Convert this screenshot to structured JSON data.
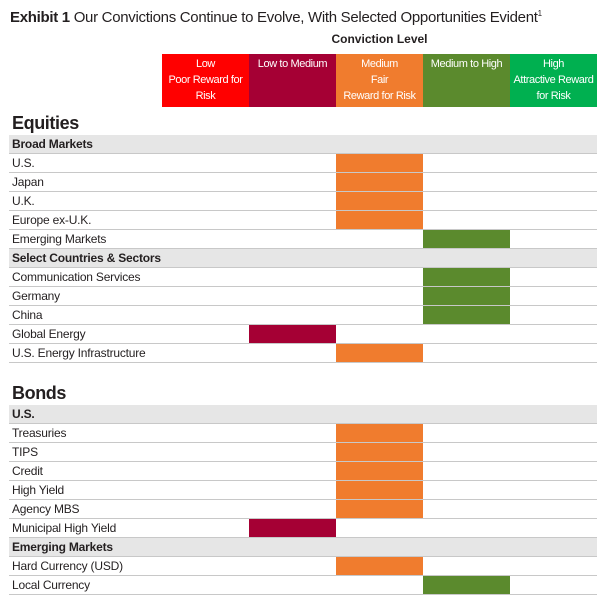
{
  "title": {
    "label": "Exhibit 1",
    "text": "Our Convictions Continue to Evolve, With Selected Opportunities Evident",
    "footnote": "1"
  },
  "conviction_header": "Conviction Level",
  "levels": [
    {
      "label": "Low\nPoor Reward for\nRisk",
      "color": "#ff0000"
    },
    {
      "label": "Low to Medium",
      "color": "#a50034"
    },
    {
      "label": "Medium\nFair\nReward for Risk",
      "color": "#f07c2e"
    },
    {
      "label": "Medium to High",
      "color": "#5b8a2d"
    },
    {
      "label": "High\nAttractive Reward\nfor Risk",
      "color": "#00b050"
    }
  ],
  "rows": [
    {
      "kind": "section",
      "label": "Equities"
    },
    {
      "kind": "subheader",
      "label": "Broad Markets"
    },
    {
      "kind": "item",
      "label": "U.S.",
      "level": 2
    },
    {
      "kind": "item",
      "label": "Japan",
      "level": 2
    },
    {
      "kind": "item",
      "label": "U.K.",
      "level": 2
    },
    {
      "kind": "item",
      "label": "Europe ex-U.K.",
      "level": 2
    },
    {
      "kind": "item",
      "label": "Emerging Markets",
      "level": 3
    },
    {
      "kind": "subheader",
      "label": "Select Countries & Sectors"
    },
    {
      "kind": "item",
      "label": "Communication Services",
      "level": 3
    },
    {
      "kind": "item",
      "label": "Germany",
      "level": 3
    },
    {
      "kind": "item",
      "label": "China",
      "level": 3
    },
    {
      "kind": "item",
      "label": "Global Energy",
      "level": 1
    },
    {
      "kind": "item",
      "label": "U.S. Energy Infrastructure",
      "level": 2
    },
    {
      "kind": "spacer"
    },
    {
      "kind": "section",
      "label": "Bonds"
    },
    {
      "kind": "subheader",
      "label": "U.S."
    },
    {
      "kind": "item",
      "label": "Treasuries",
      "level": 2
    },
    {
      "kind": "item",
      "label": "TIPS",
      "level": 2
    },
    {
      "kind": "item",
      "label": "Credit",
      "level": 2
    },
    {
      "kind": "item",
      "label": "High Yield",
      "level": 2
    },
    {
      "kind": "item",
      "label": "Agency MBS",
      "level": 2
    },
    {
      "kind": "item",
      "label": "Municipal High Yield",
      "level": 1
    },
    {
      "kind": "subheader",
      "label": "Emerging Markets"
    },
    {
      "kind": "item",
      "label": "Hard Currency (USD)",
      "level": 2
    },
    {
      "kind": "item",
      "label": "Local Currency",
      "level": 3
    }
  ]
}
